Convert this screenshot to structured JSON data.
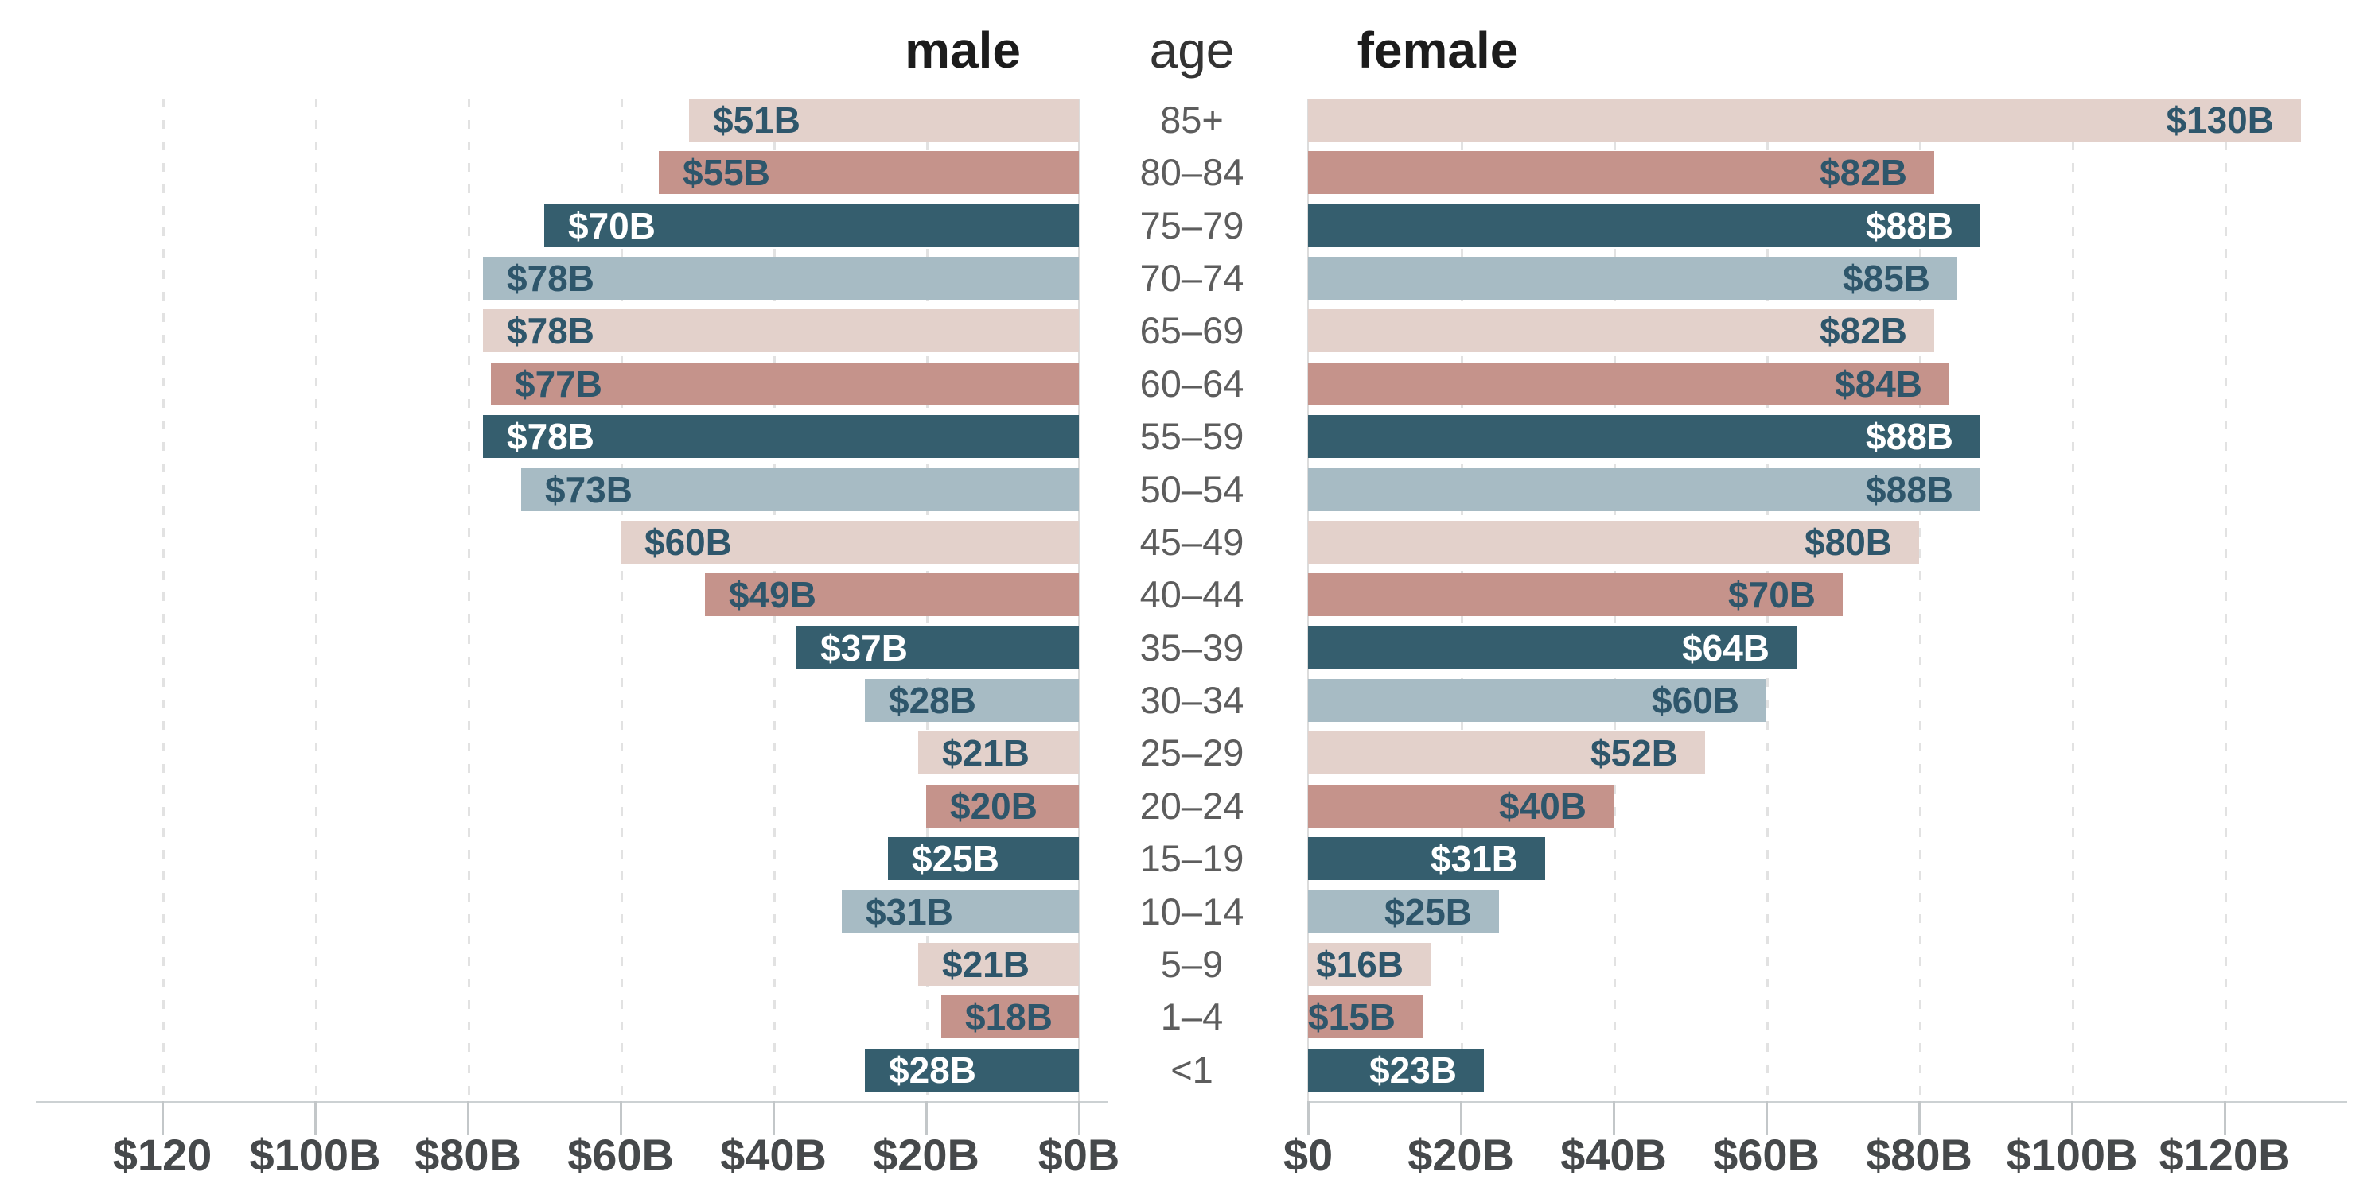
{
  "headers": {
    "male": "male",
    "age": "age",
    "female": "female"
  },
  "chart_data": {
    "type": "bar",
    "subtype": "population-pyramid",
    "title": "",
    "unit": "billions of dollars",
    "categories": [
      "85+",
      "80–84",
      "75–79",
      "70–74",
      "65–69",
      "60–64",
      "55–59",
      "50–54",
      "45–49",
      "40–44",
      "35–39",
      "30–34",
      "25–29",
      "20–24",
      "15–19",
      "10–14",
      "5–9",
      "1–4",
      "<1"
    ],
    "series": [
      {
        "name": "male",
        "values": [
          51,
          55,
          70,
          78,
          78,
          77,
          78,
          73,
          60,
          49,
          37,
          28,
          21,
          20,
          25,
          31,
          21,
          18,
          28
        ],
        "labels": [
          "$51B",
          "$55B",
          "$70B",
          "$78B",
          "$78B",
          "$77B",
          "$78B",
          "$73B",
          "$60B",
          "$49B",
          "$37B",
          "$28B",
          "$21B",
          "$20B",
          "$25B",
          "$31B",
          "$21B",
          "$18B",
          "$28B"
        ]
      },
      {
        "name": "female",
        "values": [
          130,
          82,
          88,
          85,
          82,
          84,
          88,
          88,
          80,
          70,
          64,
          60,
          52,
          40,
          31,
          25,
          16,
          15,
          23
        ],
        "labels": [
          "$130B",
          "$82B",
          "$88B",
          "$85B",
          "$82B",
          "$84B",
          "$88B",
          "$88B",
          "$80B",
          "$70B",
          "$64B",
          "$60B",
          "$52B",
          "$40B",
          "$31B",
          "$25B",
          "$16B",
          "$15B",
          "$23B"
        ]
      }
    ],
    "x_axis": {
      "male_ticks": [
        "$120",
        "$100B",
        "$80B",
        "$60B",
        "$40B",
        "$20B",
        "$0B"
      ],
      "female_ticks": [
        "$0",
        "$20B",
        "$40B",
        "$60B",
        "$80B",
        "$100B",
        "$120B"
      ],
      "tick_step": 20,
      "axis_max": 130,
      "grid": "dashed-vertical"
    },
    "colors": {
      "palette": [
        "#e3d1cb",
        "#c5938b",
        "#355e6e",
        "#a7bbc4"
      ],
      "palette_cycle": "row index mod 4",
      "label_on_light": "#2e566b",
      "label_on_dark": "#ffffff",
      "axis_line": "#ccd1d3",
      "tick_label": "#46494b",
      "age_label": "#5d5d5d",
      "background": "#ffffff"
    },
    "legend": null
  }
}
